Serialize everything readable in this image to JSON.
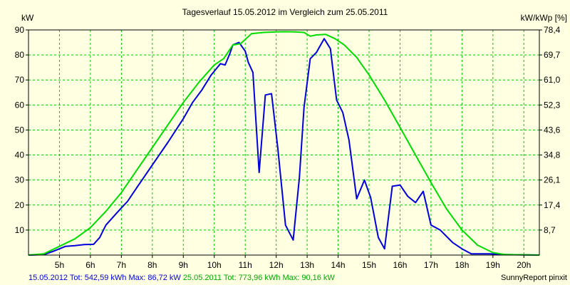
{
  "chart_data": {
    "type": "line",
    "title": "Tagesverlauf 15.05.2012 im Vergleich zum 25.05.2011",
    "ylabel_left": "kW",
    "ylabel_right": "kW/kWp [%]",
    "xlim": [
      4.0,
      20.5
    ],
    "ylim": [
      0,
      90
    ],
    "x_ticks": [
      {
        "x": 5,
        "label": "5h"
      },
      {
        "x": 6,
        "label": "6h"
      },
      {
        "x": 7,
        "label": "7h"
      },
      {
        "x": 8,
        "label": "8h"
      },
      {
        "x": 9,
        "label": "9h"
      },
      {
        "x": 10,
        "label": "10h"
      },
      {
        "x": 11,
        "label": "11h"
      },
      {
        "x": 12,
        "label": "12h"
      },
      {
        "x": 13,
        "label": "13h"
      },
      {
        "x": 14,
        "label": "14h"
      },
      {
        "x": 15,
        "label": "15h"
      },
      {
        "x": 16,
        "label": "16h"
      },
      {
        "x": 17,
        "label": "17h"
      },
      {
        "x": 18,
        "label": "18h"
      },
      {
        "x": 19,
        "label": "19h"
      },
      {
        "x": 20,
        "label": "20h"
      }
    ],
    "y_ticks_left": [
      {
        "y": 10,
        "label": "10"
      },
      {
        "y": 20,
        "label": "20"
      },
      {
        "y": 30,
        "label": "30"
      },
      {
        "y": 40,
        "label": "40"
      },
      {
        "y": 50,
        "label": "50"
      },
      {
        "y": 60,
        "label": "60"
      },
      {
        "y": 70,
        "label": "70"
      },
      {
        "y": 80,
        "label": "80"
      },
      {
        "y": 90,
        "label": "90"
      }
    ],
    "y_ticks_right": [
      {
        "y": 10,
        "label": "8,7"
      },
      {
        "y": 20,
        "label": "17,4"
      },
      {
        "y": 30,
        "label": "26,1"
      },
      {
        "y": 40,
        "label": "34,8"
      },
      {
        "y": 50,
        "label": "43,6"
      },
      {
        "y": 60,
        "label": "52,3"
      },
      {
        "y": 70,
        "label": "61,0"
      },
      {
        "y": 80,
        "label": "69,7"
      },
      {
        "y": 90,
        "label": "78,4"
      }
    ],
    "grid": true,
    "series": [
      {
        "color": "#0000dd",
        "points": [
          [
            4.0,
            0
          ],
          [
            4.5,
            0.2
          ],
          [
            4.8,
            1.5
          ],
          [
            5.2,
            3.5
          ],
          [
            5.5,
            3.8
          ],
          [
            5.8,
            4.2
          ],
          [
            6.1,
            4.3
          ],
          [
            6.3,
            7
          ],
          [
            6.5,
            12
          ],
          [
            6.9,
            17.5
          ],
          [
            7.2,
            21.5
          ],
          [
            7.5,
            27
          ],
          [
            8.0,
            36
          ],
          [
            8.5,
            45
          ],
          [
            9.0,
            54.5
          ],
          [
            9.3,
            61
          ],
          [
            9.6,
            66
          ],
          [
            9.9,
            72
          ],
          [
            10.2,
            76.5
          ],
          [
            10.35,
            76
          ],
          [
            10.5,
            80.5
          ],
          [
            10.6,
            84
          ],
          [
            10.8,
            85
          ],
          [
            11.0,
            81.5
          ],
          [
            11.1,
            77
          ],
          [
            11.25,
            73
          ],
          [
            11.45,
            33
          ],
          [
            11.65,
            64
          ],
          [
            11.85,
            64.5
          ],
          [
            12.05,
            43
          ],
          [
            12.3,
            12
          ],
          [
            12.55,
            6
          ],
          [
            12.75,
            31
          ],
          [
            12.9,
            59
          ],
          [
            13.1,
            78.5
          ],
          [
            13.3,
            81
          ],
          [
            13.55,
            86.5
          ],
          [
            13.75,
            82.5
          ],
          [
            13.95,
            62
          ],
          [
            14.15,
            57
          ],
          [
            14.35,
            46
          ],
          [
            14.6,
            22.5
          ],
          [
            14.85,
            30
          ],
          [
            15.05,
            23
          ],
          [
            15.3,
            7
          ],
          [
            15.5,
            2.5
          ],
          [
            15.75,
            27.5
          ],
          [
            16.0,
            28
          ],
          [
            16.25,
            23.5
          ],
          [
            16.5,
            21
          ],
          [
            16.75,
            25.5
          ],
          [
            17.0,
            12
          ],
          [
            17.3,
            10
          ],
          [
            17.7,
            5
          ],
          [
            18.0,
            2.5
          ],
          [
            18.3,
            0.5
          ],
          [
            18.6,
            0.5
          ],
          [
            18.9,
            0.5
          ],
          [
            19.3,
            0.2
          ],
          [
            20.5,
            0
          ]
        ]
      },
      {
        "color": "#00dd00",
        "points": [
          [
            4.0,
            0
          ],
          [
            4.5,
            0.5
          ],
          [
            5.0,
            3.5
          ],
          [
            5.5,
            6.5
          ],
          [
            6.0,
            11
          ],
          [
            6.5,
            17.5
          ],
          [
            7.0,
            25
          ],
          [
            7.5,
            34
          ],
          [
            8.0,
            43
          ],
          [
            8.5,
            52
          ],
          [
            9.0,
            61
          ],
          [
            9.5,
            69
          ],
          [
            10.0,
            76
          ],
          [
            10.3,
            78.5
          ],
          [
            10.6,
            84
          ],
          [
            10.85,
            84.5
          ],
          [
            11.2,
            88.5
          ],
          [
            11.6,
            89
          ],
          [
            12.0,
            89.2
          ],
          [
            12.3,
            89.3
          ],
          [
            12.6,
            89.2
          ],
          [
            12.9,
            89
          ],
          [
            13.1,
            87.5
          ],
          [
            13.3,
            88
          ],
          [
            13.6,
            88.2
          ],
          [
            13.9,
            86.5
          ],
          [
            14.2,
            84
          ],
          [
            14.6,
            79
          ],
          [
            15.0,
            72
          ],
          [
            15.5,
            62
          ],
          [
            16.0,
            51
          ],
          [
            16.5,
            40
          ],
          [
            17.0,
            29
          ],
          [
            17.5,
            18.5
          ],
          [
            18.0,
            10
          ],
          [
            18.5,
            4
          ],
          [
            19.0,
            1
          ],
          [
            19.4,
            0.2
          ],
          [
            20.5,
            0
          ]
        ]
      }
    ]
  },
  "footer": {
    "blue_summary": "15.05.2012 Tot: 542,59 kWh Max: 86,72 kW",
    "green_summary": "25.05.2011 Tot: 773,96 kWh Max: 90,16 kW",
    "credit": "SunnyReport pinxit"
  }
}
